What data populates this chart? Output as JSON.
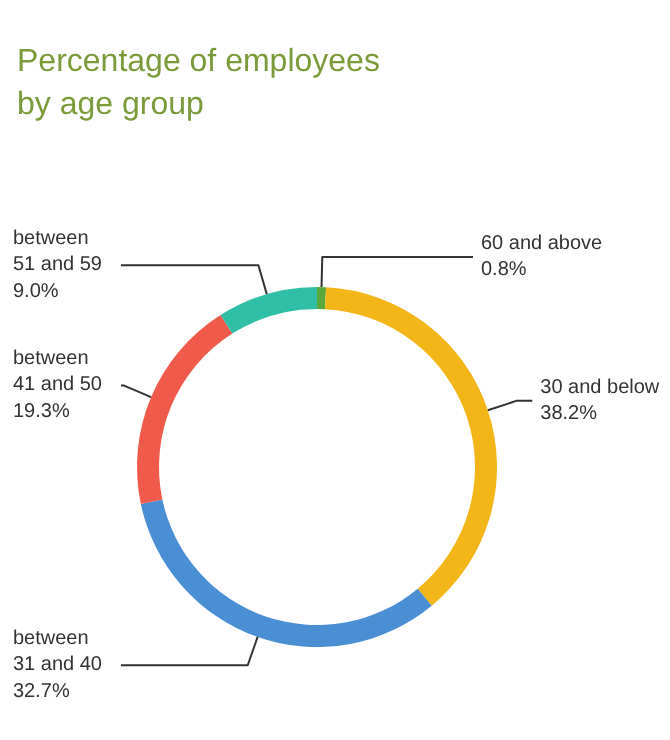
{
  "chart_data": {
    "type": "donut",
    "title": "Percentage of employees\nby age group",
    "categories": [
      "60 and above",
      "30 and below",
      "between\n31 and 40",
      "between\n41 and 50",
      "between\n51 and 59"
    ],
    "values": [
      0.8,
      38.2,
      32.7,
      19.3,
      9.0
    ],
    "value_labels": [
      "0.8%",
      "38.2%",
      "32.7%",
      "19.3%",
      "9.0%"
    ],
    "colors": [
      "#5aa83c",
      "#f2b619",
      "#4a8fd4",
      "#f05a4a",
      "#2fbfa6"
    ]
  }
}
